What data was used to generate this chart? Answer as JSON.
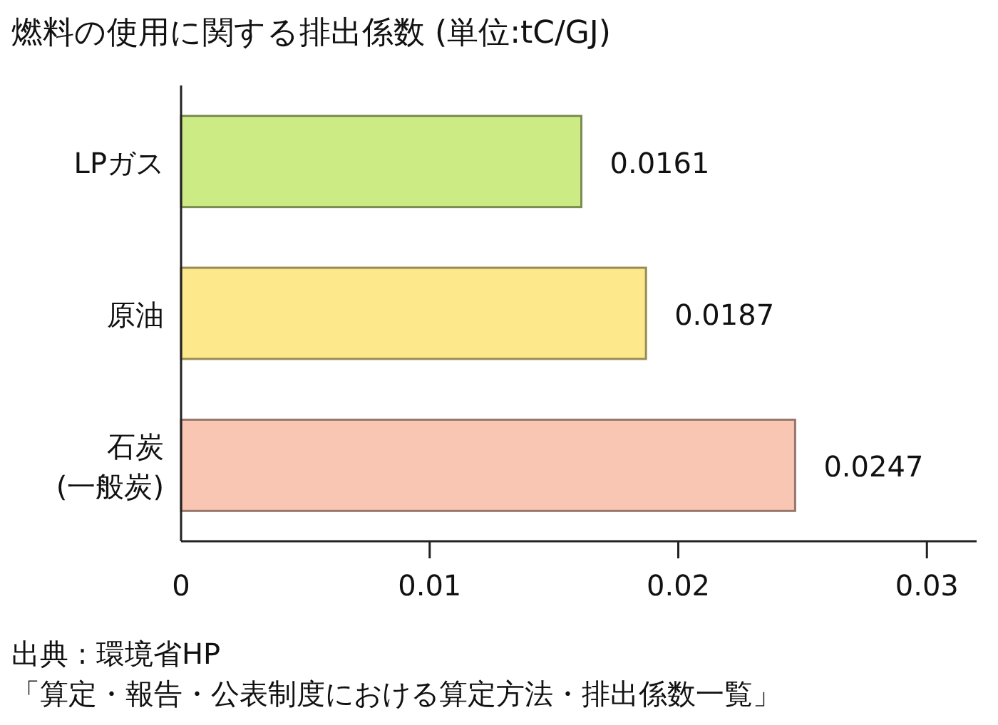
{
  "chart_data": {
    "type": "bar",
    "orientation": "horizontal",
    "title": "燃料の使用に関する排出係数 (単位:tC/GJ)",
    "categories": [
      "LPガス",
      "原油",
      "石炭\n(一般炭)"
    ],
    "values": [
      0.0161,
      0.0187,
      0.0247
    ],
    "colors": [
      "#cdeb85",
      "#fde88b",
      "#f8c6b2"
    ],
    "xlim": [
      0,
      0.032
    ],
    "xticks": [
      0,
      0.01,
      0.02,
      0.03
    ],
    "data_labels": true,
    "grid": false,
    "annotations": [
      "出典 : 環境省HP",
      "「算定・報告・公表制度における算定方法・排出係数一覧」"
    ]
  }
}
